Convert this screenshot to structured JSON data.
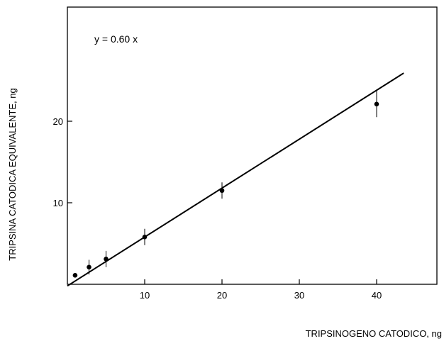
{
  "chart_data": {
    "type": "scatter",
    "title": "",
    "xlabel": "TRIPSINOGENO CATODICO, ng",
    "ylabel": "TRIPSINA CATODICA EQUIVALENTE, ng",
    "xlim": [
      0,
      50
    ],
    "ylim": [
      0,
      34
    ],
    "x_ticks": [
      10,
      20,
      30,
      40
    ],
    "y_ticks": [
      10,
      20
    ],
    "x_tick_labels": [
      "10",
      "20",
      "30",
      "40"
    ],
    "y_tick_labels": [
      "10",
      "20"
    ],
    "equation": "y = 0.60 x",
    "grid": false,
    "points": [
      {
        "x": 1,
        "y": 1.1,
        "err": 0
      },
      {
        "x": 2.8,
        "y": 2.1,
        "err": 0.9
      },
      {
        "x": 5,
        "y": 3.1,
        "err": 1.0
      },
      {
        "x": 10,
        "y": 5.8,
        "err": 1.0
      },
      {
        "x": 20,
        "y": 11.5,
        "err": 1.0
      },
      {
        "x": 40,
        "y": 22.1,
        "err": 1.6
      }
    ],
    "fit_line": {
      "slope": 0.6,
      "intercept": -0.2,
      "x_start": 0,
      "x_end": 43.5
    }
  }
}
